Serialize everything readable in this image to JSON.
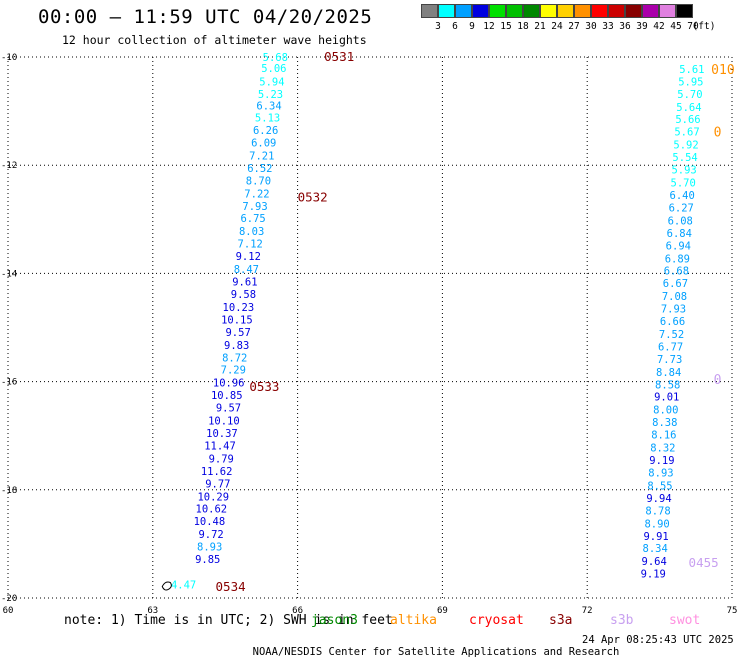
{
  "header": {
    "title": "00:00 – 11:59 UTC 04/20/2025",
    "subtitle": "12 hour collection of altimeter wave heights"
  },
  "legend": {
    "unit": "(ft)",
    "bins": [
      {
        "label": "3",
        "color": "#808080"
      },
      {
        "label": "6",
        "color": "#00ffff"
      },
      {
        "label": "9",
        "color": "#00a0ff"
      },
      {
        "label": "12",
        "color": "#0000e0"
      },
      {
        "label": "15",
        "color": "#00e000"
      },
      {
        "label": "18",
        "color": "#00c000"
      },
      {
        "label": "21",
        "color": "#008800"
      },
      {
        "label": "24",
        "color": "#ffff00"
      },
      {
        "label": "27",
        "color": "#ffd000"
      },
      {
        "label": "30",
        "color": "#ff9000"
      },
      {
        "label": "33",
        "color": "#ff0000"
      },
      {
        "label": "36",
        "color": "#cc0000"
      },
      {
        "label": "39",
        "color": "#880000"
      },
      {
        "label": "42",
        "color": "#aa00aa"
      },
      {
        "label": "45",
        "color": "#e080e0"
      },
      {
        "label": "70",
        "color": "#000000"
      }
    ]
  },
  "chart_data": {
    "type": "scatter",
    "title": "00:00 – 11:59 UTC 04/20/2025",
    "subtitle": "12 hour collection of altimeter wave heights",
    "xlabel": "",
    "ylabel": "",
    "x_ticks": [
      "60",
      "63",
      "66",
      "69",
      "72",
      "75"
    ],
    "y_ticks": [
      "-10",
      "-12",
      "-14",
      "-16",
      "-18",
      "-20"
    ],
    "xlim": [
      60,
      75
    ],
    "ylim": [
      -20,
      -10
    ],
    "grid": true,
    "tracks": [
      {
        "pass_labels": [
          {
            "label": "0531",
            "lon": 66.55,
            "lat": -10.0
          },
          {
            "label": "0532",
            "lon": 66.0,
            "lat": -12.6
          },
          {
            "label": "0533",
            "lon": 65.0,
            "lat": -16.1
          },
          {
            "label": "0534",
            "lon": 64.3,
            "lat": -19.8
          }
        ],
        "points": [
          {
            "lon": 65.8,
            "lat": -10.0,
            "value": "5.68"
          },
          {
            "lon": 65.77,
            "lat": -10.2,
            "value": "5.06"
          },
          {
            "lon": 65.73,
            "lat": -10.45,
            "value": "5.94"
          },
          {
            "lon": 65.7,
            "lat": -10.68,
            "value": "5.23"
          },
          {
            "lon": 65.67,
            "lat": -10.9,
            "value": "6.34"
          },
          {
            "lon": 65.64,
            "lat": -11.12,
            "value": "5.13"
          },
          {
            "lon": 65.6,
            "lat": -11.35,
            "value": "6.26"
          },
          {
            "lon": 65.56,
            "lat": -11.58,
            "value": "6.09"
          },
          {
            "lon": 65.52,
            "lat": -11.82,
            "value": "7.21"
          },
          {
            "lon": 65.48,
            "lat": -12.05,
            "value": "6.52"
          },
          {
            "lon": 65.45,
            "lat": -12.28,
            "value": "8.70"
          },
          {
            "lon": 65.42,
            "lat": -12.52,
            "value": "7.22"
          },
          {
            "lon": 65.38,
            "lat": -12.75,
            "value": "7.93"
          },
          {
            "lon": 65.34,
            "lat": -12.98,
            "value": "6.75"
          },
          {
            "lon": 65.31,
            "lat": -13.22,
            "value": "8.03"
          },
          {
            "lon": 65.28,
            "lat": -13.45,
            "value": "7.12"
          },
          {
            "lon": 65.24,
            "lat": -13.68,
            "value": "9.12"
          },
          {
            "lon": 65.2,
            "lat": -13.92,
            "value": "8.47"
          },
          {
            "lon": 65.17,
            "lat": -14.15,
            "value": "9.61"
          },
          {
            "lon": 65.14,
            "lat": -14.38,
            "value": "9.58"
          },
          {
            "lon": 65.1,
            "lat": -14.62,
            "value": "10.23"
          },
          {
            "lon": 65.07,
            "lat": -14.85,
            "value": "10.15"
          },
          {
            "lon": 65.03,
            "lat": -15.08,
            "value": "9.57"
          },
          {
            "lon": 65.0,
            "lat": -15.32,
            "value": "9.83"
          },
          {
            "lon": 64.96,
            "lat": -15.55,
            "value": "8.72"
          },
          {
            "lon": 64.93,
            "lat": -15.78,
            "value": "7.29"
          },
          {
            "lon": 64.9,
            "lat": -16.02,
            "value": "10.96"
          },
          {
            "lon": 64.86,
            "lat": -16.25,
            "value": "10.85"
          },
          {
            "lon": 64.83,
            "lat": -16.48,
            "value": "9.57"
          },
          {
            "lon": 64.8,
            "lat": -16.72,
            "value": "10.10"
          },
          {
            "lon": 64.76,
            "lat": -16.95,
            "value": "10.37"
          },
          {
            "lon": 64.72,
            "lat": -17.18,
            "value": "11.47"
          },
          {
            "lon": 64.68,
            "lat": -17.42,
            "value": "9.79"
          },
          {
            "lon": 64.65,
            "lat": -17.65,
            "value": "11.62"
          },
          {
            "lon": 64.61,
            "lat": -17.88,
            "value": "9.77"
          },
          {
            "lon": 64.58,
            "lat": -18.12,
            "value": "10.29"
          },
          {
            "lon": 64.54,
            "lat": -18.35,
            "value": "10.62"
          },
          {
            "lon": 64.5,
            "lat": -18.58,
            "value": "10.48"
          },
          {
            "lon": 64.47,
            "lat": -18.82,
            "value": "9.72"
          },
          {
            "lon": 64.44,
            "lat": -19.05,
            "value": "8.93"
          },
          {
            "lon": 64.4,
            "lat": -19.28,
            "value": "9.85"
          },
          {
            "lon": 63.9,
            "lat": -19.75,
            "value": "4.47"
          }
        ]
      },
      {
        "pass_labels": [
          {
            "label": "0455",
            "lon": 74.1,
            "lat": -19.35
          }
        ],
        "points": [
          {
            "lon": 74.43,
            "lat": -10.22,
            "value": "5.61"
          },
          {
            "lon": 74.41,
            "lat": -10.45,
            "value": "5.95"
          },
          {
            "lon": 74.39,
            "lat": -10.68,
            "value": "5.70"
          },
          {
            "lon": 74.37,
            "lat": -10.92,
            "value": "5.64"
          },
          {
            "lon": 74.35,
            "lat": -11.15,
            "value": "5.66"
          },
          {
            "lon": 74.33,
            "lat": -11.38,
            "value": "5.67"
          },
          {
            "lon": 74.31,
            "lat": -11.62,
            "value": "5.92"
          },
          {
            "lon": 74.29,
            "lat": -11.85,
            "value": "5.54"
          },
          {
            "lon": 74.27,
            "lat": -12.08,
            "value": "5.93"
          },
          {
            "lon": 74.25,
            "lat": -12.32,
            "value": "5.70"
          },
          {
            "lon": 74.23,
            "lat": -12.55,
            "value": "6.40"
          },
          {
            "lon": 74.21,
            "lat": -12.78,
            "value": "6.27"
          },
          {
            "lon": 74.19,
            "lat": -13.02,
            "value": "6.08"
          },
          {
            "lon": 74.17,
            "lat": -13.25,
            "value": "6.84"
          },
          {
            "lon": 74.15,
            "lat": -13.48,
            "value": "6.94"
          },
          {
            "lon": 74.13,
            "lat": -13.72,
            "value": "6.89"
          },
          {
            "lon": 74.11,
            "lat": -13.95,
            "value": "6.68"
          },
          {
            "lon": 74.09,
            "lat": -14.18,
            "value": "6.67"
          },
          {
            "lon": 74.07,
            "lat": -14.42,
            "value": "7.08"
          },
          {
            "lon": 74.05,
            "lat": -14.65,
            "value": "7.93"
          },
          {
            "lon": 74.03,
            "lat": -14.88,
            "value": "6.66"
          },
          {
            "lon": 74.01,
            "lat": -15.12,
            "value": "7.52"
          },
          {
            "lon": 73.99,
            "lat": -15.35,
            "value": "6.77"
          },
          {
            "lon": 73.97,
            "lat": -15.58,
            "value": "7.73"
          },
          {
            "lon": 73.95,
            "lat": -15.82,
            "value": "8.84"
          },
          {
            "lon": 73.93,
            "lat": -16.05,
            "value": "8.58"
          },
          {
            "lon": 73.91,
            "lat": -16.28,
            "value": "9.01"
          },
          {
            "lon": 73.89,
            "lat": -16.52,
            "value": "8.00"
          },
          {
            "lon": 73.87,
            "lat": -16.75,
            "value": "8.38"
          },
          {
            "lon": 73.85,
            "lat": -16.98,
            "value": "8.16"
          },
          {
            "lon": 73.83,
            "lat": -17.22,
            "value": "8.32"
          },
          {
            "lon": 73.81,
            "lat": -17.45,
            "value": "9.19"
          },
          {
            "lon": 73.79,
            "lat": -17.68,
            "value": "8.93"
          },
          {
            "lon": 73.77,
            "lat": -17.92,
            "value": "8.55"
          },
          {
            "lon": 73.75,
            "lat": -18.15,
            "value": "9.94"
          },
          {
            "lon": 73.73,
            "lat": -18.38,
            "value": "8.78"
          },
          {
            "lon": 73.71,
            "lat": -18.62,
            "value": "8.90"
          },
          {
            "lon": 73.69,
            "lat": -18.85,
            "value": "9.91"
          },
          {
            "lon": 73.67,
            "lat": -19.08,
            "value": "8.34"
          },
          {
            "lon": 73.65,
            "lat": -19.32,
            "value": "9.64"
          },
          {
            "lon": 73.63,
            "lat": -19.55,
            "value": "9.19"
          }
        ]
      }
    ],
    "edge_labels": [
      {
        "text": "010",
        "lon": 74.9,
        "lat": -10.22,
        "color": "#ff9000"
      },
      {
        "text": "0",
        "lon": 74.95,
        "lat": -11.38,
        "color": "#ff9000"
      },
      {
        "text": "0",
        "lon": 74.95,
        "lat": -15.95,
        "color": "#c8a0f0"
      }
    ]
  },
  "notes": {
    "text": "note: 1) Time is in UTC; 2) SWH is in feet",
    "satellites": [
      {
        "name": "jason3",
        "color": "#008800"
      },
      {
        "name": "altika",
        "color": "#ff9000"
      },
      {
        "name": "cryosat",
        "color": "#ff0000"
      },
      {
        "name": "s3a",
        "color": "#880000"
      },
      {
        "name": "s3b",
        "color": "#c8a0f0"
      },
      {
        "name": "swot",
        "color": "#ff90e0"
      }
    ]
  },
  "footer": {
    "credit": "NOAA/NESDIS Center for Satellite Applications and Research",
    "timestamp": "24 Apr 08:25:43 UTC 2025"
  },
  "colors": {
    "pass_label": "#880000",
    "grid": "#000000"
  }
}
